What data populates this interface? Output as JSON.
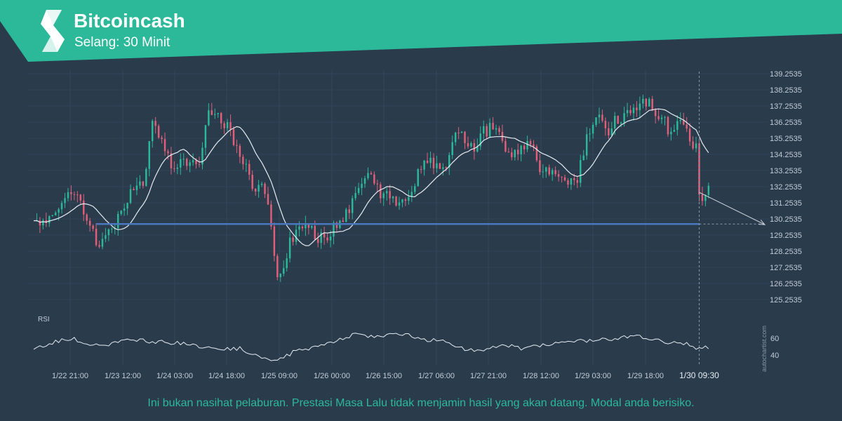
{
  "header": {
    "title": "Bitcoincash",
    "subtitle": "Selang: 30 Minit"
  },
  "colors": {
    "background": "#2a3b4c",
    "banner": "#2bb99a",
    "up_candle": "#2bb99a",
    "down_candle": "#e0607a",
    "moving_average": "#e6ecf2",
    "support_line": "#4a78c0",
    "disclaimer_text": "#2bb99a"
  },
  "chart_data": {
    "type": "candlestick",
    "instrument": "Bitcoincash",
    "y_ticks": [
      "139.2535",
      "138.2535",
      "137.2535",
      "136.2535",
      "135.2535",
      "134.2535",
      "133.2535",
      "132.2535",
      "131.2535",
      "130.2535",
      "129.2535",
      "128.2535",
      "127.2535",
      "126.2535",
      "125.2535"
    ],
    "ylim": [
      125.2535,
      139.2535
    ],
    "x_ticks": [
      "1/22 21:00",
      "1/23 12:00",
      "1/24 03:00",
      "1/24 18:00",
      "1/25 09:00",
      "1/26 00:00",
      "1/26 15:00",
      "1/27 06:00",
      "1/27 21:00",
      "1/28 12:00",
      "1/29 03:00",
      "1/29 18:00"
    ],
    "last_time_label": "1/30 09:30",
    "close_path": [
      [
        0,
        129.9
      ],
      [
        5,
        130.4
      ],
      [
        9,
        131.5
      ],
      [
        13,
        132.1
      ],
      [
        17,
        130.4
      ],
      [
        21,
        128.3
      ],
      [
        25,
        129.6
      ],
      [
        29,
        131.1
      ],
      [
        32,
        132.4
      ],
      [
        35,
        132.2
      ],
      [
        38,
        136.4
      ],
      [
        41,
        135.4
      ],
      [
        44,
        133.5
      ],
      [
        47,
        133.8
      ],
      [
        50,
        133.6
      ],
      [
        53,
        133.9
      ],
      [
        56,
        136.9
      ],
      [
        59,
        136.7
      ],
      [
        62,
        135.9
      ],
      [
        65,
        134.6
      ],
      [
        68,
        133.6
      ],
      [
        71,
        131.9
      ],
      [
        73,
        132.5
      ],
      [
        76,
        130.1
      ],
      [
        78,
        126.4
      ],
      [
        81,
        128.2
      ],
      [
        84,
        129.7
      ],
      [
        87,
        130.0
      ],
      [
        90,
        129.3
      ],
      [
        93,
        128.9
      ],
      [
        96,
        129.6
      ],
      [
        99,
        130.1
      ],
      [
        102,
        131.1
      ],
      [
        105,
        132.8
      ],
      [
        108,
        133.0
      ],
      [
        111,
        131.5
      ],
      [
        114,
        131.9
      ],
      [
        117,
        130.9
      ],
      [
        120,
        131.9
      ],
      [
        123,
        133.0
      ],
      [
        126,
        134.0
      ],
      [
        129,
        133.3
      ],
      [
        132,
        133.8
      ],
      [
        135,
        135.2
      ],
      [
        138,
        135.3
      ],
      [
        141,
        134.7
      ],
      [
        144,
        135.6
      ],
      [
        147,
        135.9
      ],
      [
        150,
        135.1
      ],
      [
        153,
        134.2
      ],
      [
        156,
        134.7
      ],
      [
        159,
        134.9
      ],
      [
        162,
        133.3
      ],
      [
        165,
        133.3
      ],
      [
        168,
        132.9
      ],
      [
        171,
        132.3
      ],
      [
        174,
        132.5
      ],
      [
        177,
        135.4
      ],
      [
        180,
        136.6
      ],
      [
        183,
        135.7
      ],
      [
        186,
        136.2
      ],
      [
        189,
        136.8
      ],
      [
        192,
        137.1
      ],
      [
        195,
        137.8
      ],
      [
        198,
        137.3
      ],
      [
        201,
        136.4
      ],
      [
        204,
        135.6
      ],
      [
        207,
        136.0
      ],
      [
        210,
        135.3
      ],
      [
        212,
        134.5
      ],
      [
        213,
        132.2
      ],
      [
        214,
        131.3
      ],
      [
        215,
        131.9
      ],
      [
        216,
        132.0
      ]
    ],
    "rsi": {
      "label": "RSI",
      "y_ticks": [
        "60",
        "40"
      ],
      "ylim": [
        30,
        80
      ],
      "values": [
        [
          0,
          47
        ],
        [
          6,
          55
        ],
        [
          12,
          60
        ],
        [
          18,
          54
        ],
        [
          24,
          53
        ],
        [
          30,
          57
        ],
        [
          36,
          57
        ],
        [
          42,
          55
        ],
        [
          48,
          54
        ],
        [
          54,
          48
        ],
        [
          60,
          47
        ],
        [
          66,
          48
        ],
        [
          72,
          37
        ],
        [
          78,
          32
        ],
        [
          84,
          46
        ],
        [
          90,
          49
        ],
        [
          96,
          57
        ],
        [
          102,
          64
        ],
        [
          108,
          62
        ],
        [
          114,
          64
        ],
        [
          120,
          63
        ],
        [
          126,
          58
        ],
        [
          132,
          57
        ],
        [
          138,
          47
        ],
        [
          144,
          46
        ],
        [
          150,
          53
        ],
        [
          156,
          48
        ],
        [
          162,
          51
        ],
        [
          168,
          54
        ],
        [
          174,
          57
        ],
        [
          180,
          57
        ],
        [
          186,
          60
        ],
        [
          192,
          63
        ],
        [
          198,
          58
        ],
        [
          204,
          55
        ],
        [
          210,
          53
        ],
        [
          213,
          47
        ],
        [
          216,
          49
        ]
      ]
    },
    "support_level": 129.94,
    "projection": {
      "from": [
        213,
        131.9
      ],
      "to": [
        234,
        129.9
      ]
    },
    "watermark": "autochartist.com"
  },
  "disclaimer": "Ini bukan nasihat pelaburan. Prestasi Masa Lalu tidak menjamin hasil yang akan datang. Modal anda berisiko."
}
